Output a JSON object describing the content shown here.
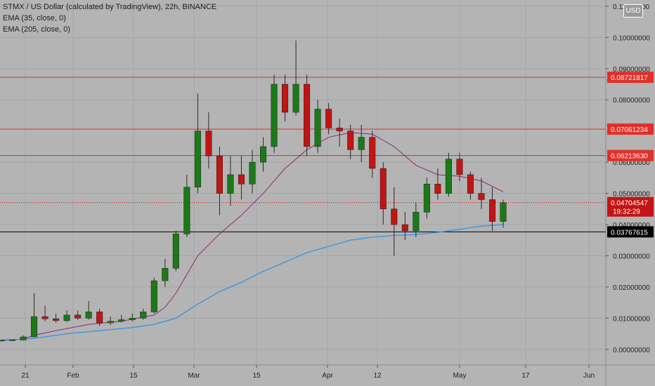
{
  "legend": {
    "symbol": "STMX / US Dollar (calculated by TradingView), 22h, BINANCE",
    "ema35": "EMA (35, close, 0)",
    "ema205": "EMA (205, close, 0)"
  },
  "currency_badge": "USD",
  "countdown": "19:32:29",
  "colors": {
    "background": "#b4b4b4",
    "up": "#1b7a17",
    "down": "#c21414",
    "ema35": "#8a2a7a",
    "ema205": "#3a96e0",
    "resistance": "#e0302a",
    "support": "#000000"
  },
  "chart_data": {
    "type": "candlestick",
    "title": "STMX / US Dollar (calculated by TradingView), 22h, BINANCE",
    "ylim": [
      -0.005,
      0.112
    ],
    "price_ticks": [
      "0.11000000",
      "0.10000000",
      "0.09000000",
      "0.08000000",
      "0.06000000",
      "0.05000000",
      "0.04000000",
      "0.03000000",
      "0.02000000",
      "0.01000000",
      "0.00000000"
    ],
    "x_ticks": [
      "21",
      "Feb",
      "15",
      "Mar",
      "15",
      "Apr",
      "12",
      "May",
      "17",
      "Jun"
    ],
    "horizontal_lines": [
      {
        "label": "0.08721817",
        "value": 0.08721817,
        "color": "#e0302a"
      },
      {
        "label": "0.07061234",
        "value": 0.07061234,
        "color": "#e0302a"
      },
      {
        "label": "0.06213630",
        "value": 0.0621363,
        "color": "#e0302a"
      },
      {
        "label": "0.03767615",
        "value": 0.03767615,
        "color": "#000000"
      }
    ],
    "current_price": {
      "label": "0.04704547",
      "value": 0.04704547
    },
    "candles": [
      {
        "t": "Jan-14",
        "o": 0.0028,
        "h": 0.0031,
        "l": 0.0026,
        "c": 0.0029
      },
      {
        "t": "Jan-21",
        "o": 0.0029,
        "h": 0.0032,
        "l": 0.0027,
        "c": 0.003
      },
      {
        "t": "Jan-28",
        "o": 0.003,
        "h": 0.0045,
        "l": 0.0028,
        "c": 0.004
      },
      {
        "t": "Feb-01",
        "o": 0.004,
        "h": 0.018,
        "l": 0.0038,
        "c": 0.0105
      },
      {
        "t": "Feb-04",
        "o": 0.0105,
        "h": 0.014,
        "l": 0.009,
        "c": 0.0098
      },
      {
        "t": "Feb-08",
        "o": 0.0098,
        "h": 0.0115,
        "l": 0.0085,
        "c": 0.0092
      },
      {
        "t": "Feb-12",
        "o": 0.0092,
        "h": 0.0125,
        "l": 0.0088,
        "c": 0.011
      },
      {
        "t": "Feb-16",
        "o": 0.011,
        "h": 0.0125,
        "l": 0.0095,
        "c": 0.01
      },
      {
        "t": "Feb-20",
        "o": 0.01,
        "h": 0.0155,
        "l": 0.0095,
        "c": 0.012
      },
      {
        "t": "Feb-23",
        "o": 0.012,
        "h": 0.013,
        "l": 0.0075,
        "c": 0.0085
      },
      {
        "t": "Feb-27",
        "o": 0.0085,
        "h": 0.0105,
        "l": 0.0078,
        "c": 0.009
      },
      {
        "t": "Mar-03",
        "o": 0.009,
        "h": 0.011,
        "l": 0.0085,
        "c": 0.0095
      },
      {
        "t": "Mar-07",
        "o": 0.0095,
        "h": 0.0115,
        "l": 0.009,
        "c": 0.01
      },
      {
        "t": "Mar-10",
        "o": 0.01,
        "h": 0.013,
        "l": 0.0095,
        "c": 0.012
      },
      {
        "t": "Mar-12",
        "o": 0.012,
        "h": 0.023,
        "l": 0.0115,
        "c": 0.022
      },
      {
        "t": "Mar-14",
        "o": 0.022,
        "h": 0.029,
        "l": 0.02,
        "c": 0.026
      },
      {
        "t": "Mar-15",
        "o": 0.026,
        "h": 0.038,
        "l": 0.025,
        "c": 0.037
      },
      {
        "t": "Mar-16",
        "o": 0.037,
        "h": 0.056,
        "l": 0.036,
        "c": 0.052
      },
      {
        "t": "Mar-17",
        "o": 0.052,
        "h": 0.082,
        "l": 0.05,
        "c": 0.07
      },
      {
        "t": "Mar-18",
        "o": 0.07,
        "h": 0.076,
        "l": 0.058,
        "c": 0.062
      },
      {
        "t": "Mar-20",
        "o": 0.062,
        "h": 0.065,
        "l": 0.043,
        "c": 0.05
      },
      {
        "t": "Mar-22",
        "o": 0.05,
        "h": 0.062,
        "l": 0.046,
        "c": 0.056
      },
      {
        "t": "Mar-24",
        "o": 0.056,
        "h": 0.062,
        "l": 0.048,
        "c": 0.053
      },
      {
        "t": "Mar-26",
        "o": 0.053,
        "h": 0.064,
        "l": 0.05,
        "c": 0.06
      },
      {
        "t": "Mar-29",
        "o": 0.06,
        "h": 0.068,
        "l": 0.057,
        "c": 0.065
      },
      {
        "t": "Mar-31",
        "o": 0.065,
        "h": 0.088,
        "l": 0.063,
        "c": 0.085
      },
      {
        "t": "Apr-02",
        "o": 0.085,
        "h": 0.088,
        "l": 0.073,
        "c": 0.076
      },
      {
        "t": "Apr-04",
        "o": 0.076,
        "h": 0.099,
        "l": 0.075,
        "c": 0.085
      },
      {
        "t": "Apr-06",
        "o": 0.085,
        "h": 0.088,
        "l": 0.062,
        "c": 0.065
      },
      {
        "t": "Apr-08",
        "o": 0.065,
        "h": 0.08,
        "l": 0.063,
        "c": 0.077
      },
      {
        "t": "Apr-10",
        "o": 0.077,
        "h": 0.079,
        "l": 0.069,
        "c": 0.071
      },
      {
        "t": "Apr-12",
        "o": 0.071,
        "h": 0.074,
        "l": 0.065,
        "c": 0.07
      },
      {
        "t": "Apr-14",
        "o": 0.07,
        "h": 0.072,
        "l": 0.061,
        "c": 0.064
      },
      {
        "t": "Apr-16",
        "o": 0.064,
        "h": 0.072,
        "l": 0.06,
        "c": 0.068
      },
      {
        "t": "Apr-18",
        "o": 0.068,
        "h": 0.07,
        "l": 0.055,
        "c": 0.058
      },
      {
        "t": "Apr-20",
        "o": 0.058,
        "h": 0.06,
        "l": 0.04,
        "c": 0.045
      },
      {
        "t": "Apr-22",
        "o": 0.045,
        "h": 0.052,
        "l": 0.03,
        "c": 0.04
      },
      {
        "t": "Apr-24",
        "o": 0.04,
        "h": 0.044,
        "l": 0.035,
        "c": 0.038
      },
      {
        "t": "Apr-26",
        "o": 0.038,
        "h": 0.047,
        "l": 0.036,
        "c": 0.044
      },
      {
        "t": "Apr-28",
        "o": 0.044,
        "h": 0.055,
        "l": 0.042,
        "c": 0.053
      },
      {
        "t": "Apr-30",
        "o": 0.053,
        "h": 0.058,
        "l": 0.048,
        "c": 0.05
      },
      {
        "t": "May-02",
        "o": 0.05,
        "h": 0.063,
        "l": 0.049,
        "c": 0.061
      },
      {
        "t": "May-04",
        "o": 0.061,
        "h": 0.063,
        "l": 0.054,
        "c": 0.056
      },
      {
        "t": "May-06",
        "o": 0.056,
        "h": 0.057,
        "l": 0.048,
        "c": 0.05
      },
      {
        "t": "May-08",
        "o": 0.05,
        "h": 0.055,
        "l": 0.045,
        "c": 0.048
      },
      {
        "t": "May-10",
        "o": 0.048,
        "h": 0.052,
        "l": 0.038,
        "c": 0.041
      },
      {
        "t": "May-12",
        "o": 0.041,
        "h": 0.048,
        "l": 0.039,
        "c": 0.047
      }
    ],
    "series": [
      {
        "name": "EMA (35, close, 0)",
        "color": "#8a2a7a",
        "points": [
          [
            0,
            0.003
          ],
          [
            2,
            0.0033
          ],
          [
            3,
            0.0045
          ],
          [
            5,
            0.006
          ],
          [
            8,
            0.008
          ],
          [
            11,
            0.009
          ],
          [
            14,
            0.011
          ],
          [
            15,
            0.0135
          ],
          [
            16,
            0.018
          ],
          [
            17,
            0.024
          ],
          [
            18,
            0.03
          ],
          [
            20,
            0.037
          ],
          [
            22,
            0.043
          ],
          [
            24,
            0.05
          ],
          [
            26,
            0.058
          ],
          [
            28,
            0.064
          ],
          [
            30,
            0.068
          ],
          [
            32,
            0.0695
          ],
          [
            34,
            0.069
          ],
          [
            36,
            0.065
          ],
          [
            38,
            0.059
          ],
          [
            40,
            0.056
          ],
          [
            42,
            0.0555
          ],
          [
            44,
            0.054
          ],
          [
            46,
            0.0505
          ]
        ]
      },
      {
        "name": "EMA (205, close, 0)",
        "color": "#3a96e0",
        "points": [
          [
            0,
            0.0028
          ],
          [
            3,
            0.0035
          ],
          [
            6,
            0.005
          ],
          [
            9,
            0.006
          ],
          [
            12,
            0.007
          ],
          [
            14,
            0.008
          ],
          [
            16,
            0.01
          ],
          [
            18,
            0.0145
          ],
          [
            20,
            0.0185
          ],
          [
            22,
            0.0215
          ],
          [
            24,
            0.025
          ],
          [
            26,
            0.028
          ],
          [
            28,
            0.031
          ],
          [
            30,
            0.033
          ],
          [
            32,
            0.035
          ],
          [
            34,
            0.036
          ],
          [
            36,
            0.0365
          ],
          [
            38,
            0.0368
          ],
          [
            40,
            0.0375
          ],
          [
            42,
            0.0385
          ],
          [
            44,
            0.0395
          ],
          [
            46,
            0.04
          ]
        ]
      }
    ]
  }
}
